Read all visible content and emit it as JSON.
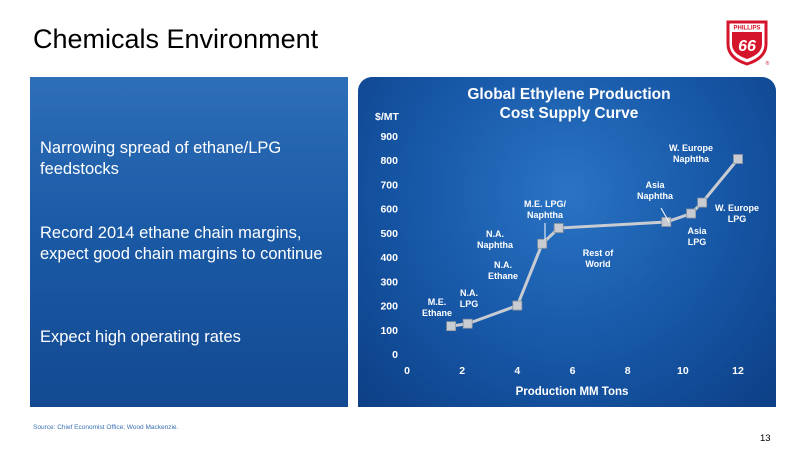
{
  "page": {
    "title": "Chemicals Environment",
    "bullets": [
      "Narrowing spread of ethane/LPG feedstocks",
      "Record 2014 ethane chain margins, expect good chain margins to continue",
      "Expect high operating rates"
    ],
    "source": "Source: Chief Economist Office; Wood Mackenzie.",
    "page_number": "13",
    "logo": {
      "text_top": "PHILLIPS",
      "text_main": "66",
      "mark": "®"
    }
  },
  "colors": {
    "panel_blue": "#1b5aa6",
    "line": "#c8ccd2",
    "marker": "#c8ccd2",
    "logo_red": "#d5152b"
  },
  "chart_data": {
    "type": "line",
    "title": "Global Ethylene Production Cost Supply Curve",
    "title_lines": [
      "Global Ethylene Production",
      "Cost Supply Curve"
    ],
    "xlabel": "Production MM Tons",
    "ylabel": "$/MT",
    "xlim": [
      0,
      12
    ],
    "ylim": [
      0,
      900
    ],
    "xticks": [
      0,
      2,
      4,
      6,
      8,
      10,
      12
    ],
    "yticks": [
      0,
      100,
      200,
      300,
      400,
      500,
      600,
      700,
      800,
      900
    ],
    "grid": false,
    "series": [
      {
        "x": [
          1.6,
          2.2,
          4.0,
          4.9,
          5.5,
          9.4,
          10.3,
          10.7,
          12.0
        ],
        "y": [
          115,
          125,
          200,
          455,
          520,
          545,
          580,
          625,
          805
        ]
      }
    ],
    "annotations": [
      {
        "lines": [
          "M.E.",
          "Ethane"
        ]
      },
      {
        "lines": [
          "N.A.",
          "LPG"
        ]
      },
      {
        "lines": [
          "N.A.",
          "Ethane"
        ]
      },
      {
        "lines": [
          "N.A.",
          "Naphtha"
        ]
      },
      {
        "lines": [
          "M.E. LPG/",
          "Naphtha"
        ]
      },
      {
        "lines": [
          "Rest of",
          "World"
        ]
      },
      {
        "lines": [
          "Asia",
          "Naphtha"
        ]
      },
      {
        "lines": [
          "Asia",
          "LPG"
        ]
      },
      {
        "lines": [
          "W. Europe",
          "LPG"
        ]
      },
      {
        "lines": [
          "W. Europe",
          "Naphtha"
        ]
      }
    ]
  }
}
